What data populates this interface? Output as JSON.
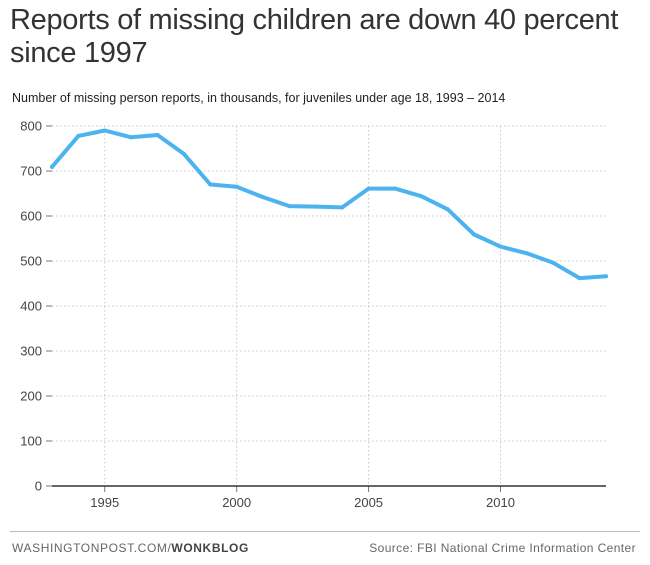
{
  "header": {
    "title": "Reports of missing children are down 40 percent since 1997"
  },
  "chart_data": {
    "type": "line",
    "title": "Reports of missing children are down 40 percent since 1997",
    "subtitle": "Number of missing person reports, in thousands, for juveniles under age 18, 1993 – 2014",
    "xlabel": "",
    "ylabel": "",
    "xlim": [
      1993,
      2014
    ],
    "ylim": [
      0,
      800
    ],
    "yticks": [
      0,
      100,
      200,
      300,
      400,
      500,
      600,
      700,
      800
    ],
    "xticks": [
      1995,
      2000,
      2005,
      2010
    ],
    "grid": true,
    "series": [
      {
        "name": "Missing person reports (thousands)",
        "color": "#4db3ef",
        "x": [
          1993,
          1994,
          1995,
          1996,
          1997,
          1998,
          1999,
          2000,
          2001,
          2002,
          2003,
          2004,
          2005,
          2006,
          2007,
          2008,
          2009,
          2010,
          2011,
          2012,
          2013,
          2014
        ],
        "values": [
          709,
          778,
          790,
          775,
          780,
          738,
          670,
          665,
          642,
          622,
          621,
          619,
          661,
          661,
          644,
          615,
          559,
          532,
          517,
          496,
          462,
          466
        ]
      }
    ]
  },
  "footer": {
    "brand_prefix": "WASHINGTONPOST.COM/",
    "brand_blog": "WONKBLOG",
    "source": "Source: FBI National Crime Information Center"
  },
  "colors": {
    "line": "#4db3ef",
    "grid": "#c8c8c8",
    "axis": "#333333"
  }
}
